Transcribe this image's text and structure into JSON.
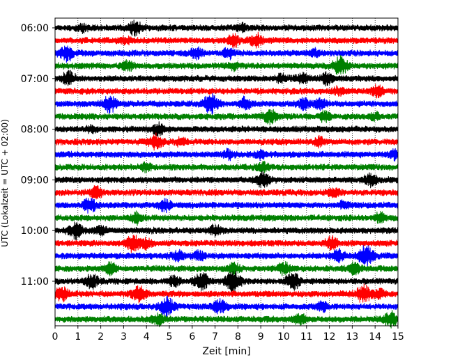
{
  "chart_data": {
    "type": "line",
    "subtype": "helicorder",
    "xlabel": "Zeit  [min]",
    "ylabel": "UTC (Lokalzeit = UTC + 02:00)",
    "xlim": [
      0,
      15
    ],
    "x_ticks": [
      "0",
      "1",
      "2",
      "3",
      "4",
      "5",
      "6",
      "7",
      "8",
      "9",
      "10",
      "11",
      "12",
      "13",
      "14",
      "15"
    ],
    "y_tick_labels": [
      "06:00",
      "07:00",
      "08:00",
      "09:00",
      "10:00",
      "11:00"
    ],
    "vertical_grid": "dotted",
    "trace_colors": [
      "#000000",
      "#ff0000",
      "#0000ff",
      "#008000"
    ],
    "traces": [
      {
        "start": "06:00",
        "color": "#000000",
        "events": [
          [
            3.5,
            0.6
          ],
          [
            1.2,
            0.3
          ],
          [
            8.2,
            0.3
          ]
        ]
      },
      {
        "start": "06:15",
        "color": "#ff0000",
        "events": [
          [
            7.8,
            0.5
          ],
          [
            8.8,
            0.6
          ],
          [
            3.1,
            0.3
          ]
        ]
      },
      {
        "start": "06:30",
        "color": "#0000ff",
        "events": [
          [
            0.5,
            0.7
          ],
          [
            6.2,
            0.5
          ],
          [
            7.6,
            0.4
          ],
          [
            11.3,
            0.3
          ]
        ]
      },
      {
        "start": "06:45",
        "color": "#008000",
        "events": [
          [
            3.2,
            0.4
          ],
          [
            12.5,
            0.8
          ],
          [
            7.8,
            0.3
          ]
        ]
      },
      {
        "start": "07:00",
        "color": "#000000",
        "events": [
          [
            0.6,
            0.6
          ],
          [
            10.8,
            0.5
          ],
          [
            11.9,
            0.5
          ],
          [
            9.9,
            0.3
          ]
        ]
      },
      {
        "start": "07:15",
        "color": "#ff0000",
        "events": [
          [
            14.1,
            0.5
          ],
          [
            12.4,
            0.3
          ]
        ]
      },
      {
        "start": "07:30",
        "color": "#0000ff",
        "events": [
          [
            2.4,
            0.7
          ],
          [
            6.8,
            0.8
          ],
          [
            8.3,
            0.5
          ],
          [
            10.9,
            0.5
          ],
          [
            11.6,
            0.4
          ]
        ]
      },
      {
        "start": "07:45",
        "color": "#008000",
        "events": [
          [
            9.4,
            0.6
          ],
          [
            11.8,
            0.4
          ],
          [
            14.0,
            0.3
          ]
        ]
      },
      {
        "start": "08:00",
        "color": "#000000",
        "events": [
          [
            4.5,
            0.5
          ],
          [
            1.6,
            0.3
          ]
        ]
      },
      {
        "start": "08:15",
        "color": "#ff0000",
        "events": [
          [
            4.4,
            0.6
          ],
          [
            5.5,
            0.3
          ],
          [
            11.6,
            0.4
          ]
        ]
      },
      {
        "start": "08:30",
        "color": "#0000ff",
        "events": [
          [
            7.6,
            0.4
          ],
          [
            14.9,
            0.4
          ],
          [
            9.0,
            0.3
          ]
        ]
      },
      {
        "start": "08:45",
        "color": "#008000",
        "events": [
          [
            4.0,
            0.3
          ],
          [
            9.1,
            0.4
          ]
        ]
      },
      {
        "start": "09:00",
        "color": "#000000",
        "events": [
          [
            9.1,
            0.7
          ],
          [
            13.8,
            0.5
          ]
        ]
      },
      {
        "start": "09:15",
        "color": "#ff0000",
        "events": [
          [
            1.8,
            0.5
          ],
          [
            12.2,
            0.4
          ]
        ]
      },
      {
        "start": "09:30",
        "color": "#0000ff",
        "events": [
          [
            1.5,
            0.6
          ],
          [
            4.8,
            0.5
          ],
          [
            12.6,
            0.3
          ]
        ]
      },
      {
        "start": "09:45",
        "color": "#008000",
        "events": [
          [
            3.6,
            0.5
          ],
          [
            14.2,
            0.4
          ]
        ]
      },
      {
        "start": "10:00",
        "color": "#000000",
        "events": [
          [
            0.9,
            0.7
          ],
          [
            7.0,
            0.4
          ],
          [
            2.0,
            0.3
          ]
        ]
      },
      {
        "start": "10:15",
        "color": "#ff0000",
        "events": [
          [
            3.4,
            0.7
          ],
          [
            4.0,
            0.4
          ],
          [
            12.1,
            0.5
          ]
        ]
      },
      {
        "start": "10:30",
        "color": "#0000ff",
        "events": [
          [
            13.6,
            0.9
          ],
          [
            5.4,
            0.4
          ],
          [
            6.3,
            0.4
          ],
          [
            12.4,
            0.5
          ]
        ]
      },
      {
        "start": "10:45",
        "color": "#008000",
        "events": [
          [
            2.4,
            0.5
          ],
          [
            7.8,
            0.5
          ],
          [
            10.0,
            0.5
          ],
          [
            13.1,
            0.5
          ]
        ]
      },
      {
        "start": "11:00",
        "color": "#000000",
        "events": [
          [
            1.6,
            0.6
          ],
          [
            6.4,
            0.8
          ],
          [
            7.8,
            0.9
          ],
          [
            10.4,
            0.7
          ],
          [
            5.2,
            0.4
          ]
        ]
      },
      {
        "start": "11:15",
        "color": "#ff0000",
        "events": [
          [
            0.3,
            0.6
          ],
          [
            3.7,
            0.7
          ],
          [
            13.5,
            0.8
          ],
          [
            14.2,
            0.4
          ]
        ]
      },
      {
        "start": "11:30",
        "color": "#0000ff",
        "events": [
          [
            4.9,
            0.8
          ],
          [
            7.2,
            0.6
          ],
          [
            11.7,
            0.4
          ]
        ]
      },
      {
        "start": "11:45",
        "color": "#008000",
        "events": [
          [
            4.5,
            0.5
          ],
          [
            10.7,
            0.5
          ],
          [
            14.7,
            0.7
          ]
        ]
      }
    ]
  }
}
